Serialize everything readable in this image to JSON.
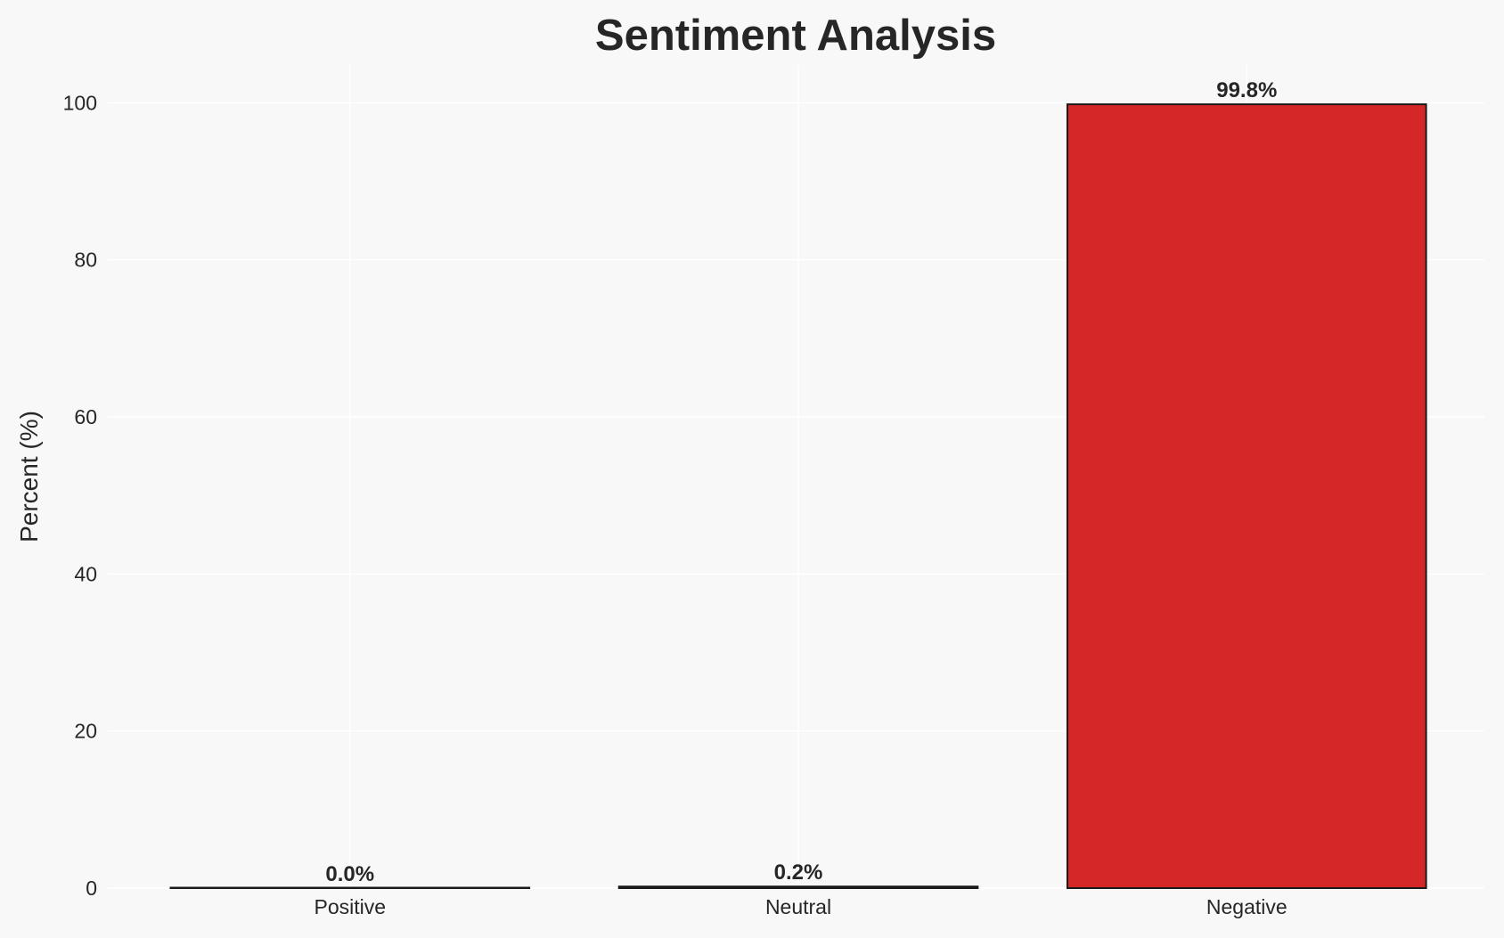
{
  "chart_data": {
    "type": "bar",
    "title": "Sentiment Analysis",
    "xlabel": "",
    "ylabel": "Percent (%)",
    "categories": [
      "Positive",
      "Neutral",
      "Negative"
    ],
    "values": [
      0.0,
      0.2,
      99.8
    ],
    "data_labels": [
      "0.0%",
      "0.2%",
      "99.8%"
    ],
    "colors": [
      "#2ca02c",
      "#7f7f7f",
      "#d62728"
    ],
    "edge_color": "#1a1a1a",
    "ylim": [
      0,
      104.8
    ],
    "yticks": [
      0,
      20,
      40,
      60,
      80,
      100
    ],
    "grid": true,
    "legend": "none"
  }
}
